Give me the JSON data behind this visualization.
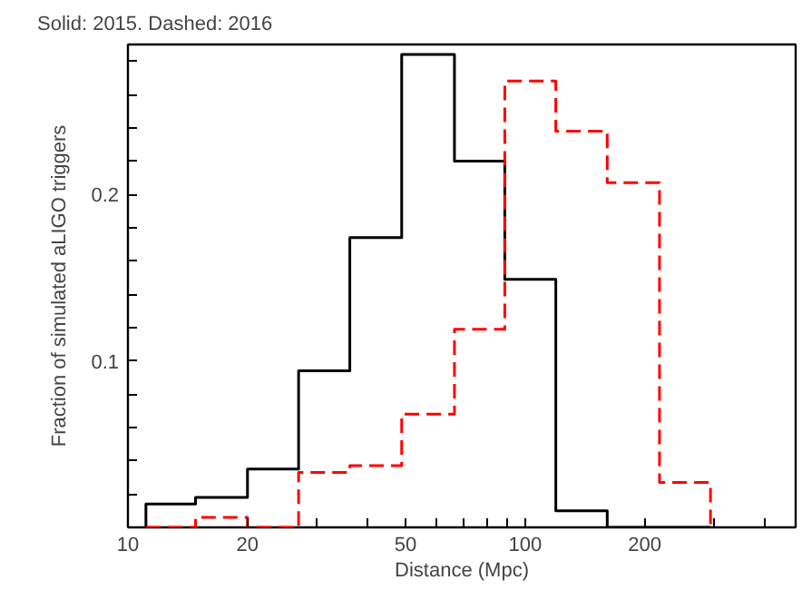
{
  "chart_data": {
    "type": "histogram",
    "title": "Solid: 2015. Dashed: 2016",
    "xlabel": "Distance (Mpc)",
    "ylabel": "Fraction of simulated aLIGO triggers",
    "log": "x",
    "grid": false,
    "bins": [
      11.1,
      14.8,
      20,
      26.9,
      36.2,
      48.9,
      66.4,
      88.9,
      119.5,
      161,
      218,
      293
    ],
    "series": [
      {
        "color": "#000000",
        "line_style": "solid",
        "values": [
          0.014,
          0.018,
          0.035,
          0.094,
          0.174,
          0.284,
          0.22,
          0.149,
          0.01,
          0,
          0
        ]
      },
      {
        "color": "#ff0000",
        "line_style": "dashed",
        "values": [
          0,
          0.006,
          0,
          0.033,
          0.037,
          0.068,
          0.119,
          0.268,
          0.238,
          0.207,
          0.027
        ]
      }
    ],
    "xlim": [
      10,
      480
    ],
    "ylim": [
      0,
      0.29
    ],
    "xticks": [
      10,
      20,
      50,
      100,
      200,
      {
        "value": 30,
        "label": null
      },
      {
        "value": 40,
        "label": null
      },
      {
        "value": 60,
        "label": null
      },
      {
        "value": 70,
        "label": null
      },
      {
        "value": 80,
        "label": null
      },
      {
        "value": 90,
        "label": null
      },
      {
        "value": 300,
        "label": null
      },
      {
        "value": 400,
        "label": null
      }
    ],
    "yticks": [
      0.1,
      0.2,
      {
        "value": 0.02,
        "label": null
      },
      {
        "value": 0.04,
        "label": null
      },
      {
        "value": 0.06,
        "label": null
      },
      {
        "value": 0.08,
        "label": null
      },
      {
        "value": 0.12,
        "label": null
      },
      {
        "value": 0.14,
        "label": null
      },
      {
        "value": 0.16,
        "label": null
      },
      {
        "value": 0.18,
        "label": null
      },
      {
        "value": 0.22,
        "label": null
      },
      {
        "value": 0.24,
        "label": null
      },
      {
        "value": 0.26,
        "label": null
      },
      {
        "value": 0.28,
        "label": null
      }
    ]
  }
}
